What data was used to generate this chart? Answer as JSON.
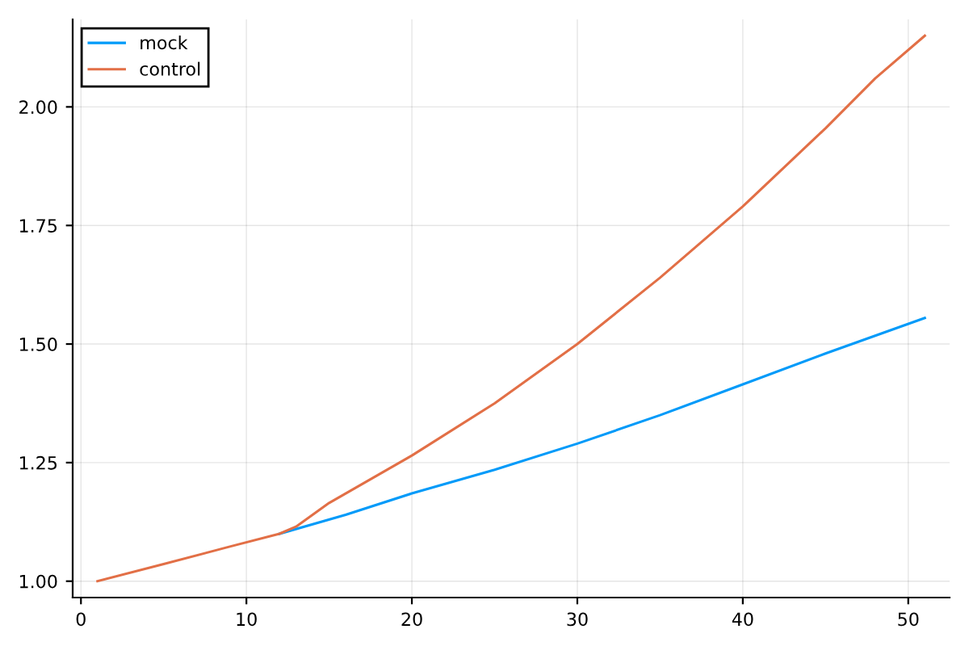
{
  "chart_data": {
    "type": "line",
    "x": [
      1,
      5,
      9,
      12,
      13,
      15,
      18,
      20,
      25,
      30,
      35,
      40,
      45,
      48,
      51
    ],
    "series": [
      {
        "name": "mock",
        "color": "#009af9",
        "x": [
          12,
          16,
          20,
          25,
          30,
          35,
          40,
          45,
          51
        ],
        "values": [
          1.1,
          1.14,
          1.185,
          1.235,
          1.29,
          1.35,
          1.415,
          1.48,
          1.555
        ]
      },
      {
        "name": "control",
        "color": "#e26f46",
        "values": [
          1.0,
          1.036,
          1.073,
          1.1,
          1.115,
          1.165,
          1.225,
          1.265,
          1.375,
          1.5,
          1.64,
          1.79,
          1.955,
          2.06,
          2.15
        ]
      }
    ],
    "xlim": [
      -0.5,
      52.5
    ],
    "ylim": [
      0.9655,
      2.1845
    ],
    "xticks": [
      0,
      10,
      20,
      30,
      40,
      50
    ],
    "yticks": [
      {
        "value": 1.0,
        "label": "1.00"
      },
      {
        "value": 1.25,
        "label": "1.25"
      },
      {
        "value": 1.5,
        "label": "1.50"
      },
      {
        "value": 1.75,
        "label": "1.75"
      },
      {
        "value": 2.0,
        "label": "2.00"
      }
    ],
    "grid": true,
    "legend": "top left",
    "line_style": "solid",
    "marker": "none"
  }
}
